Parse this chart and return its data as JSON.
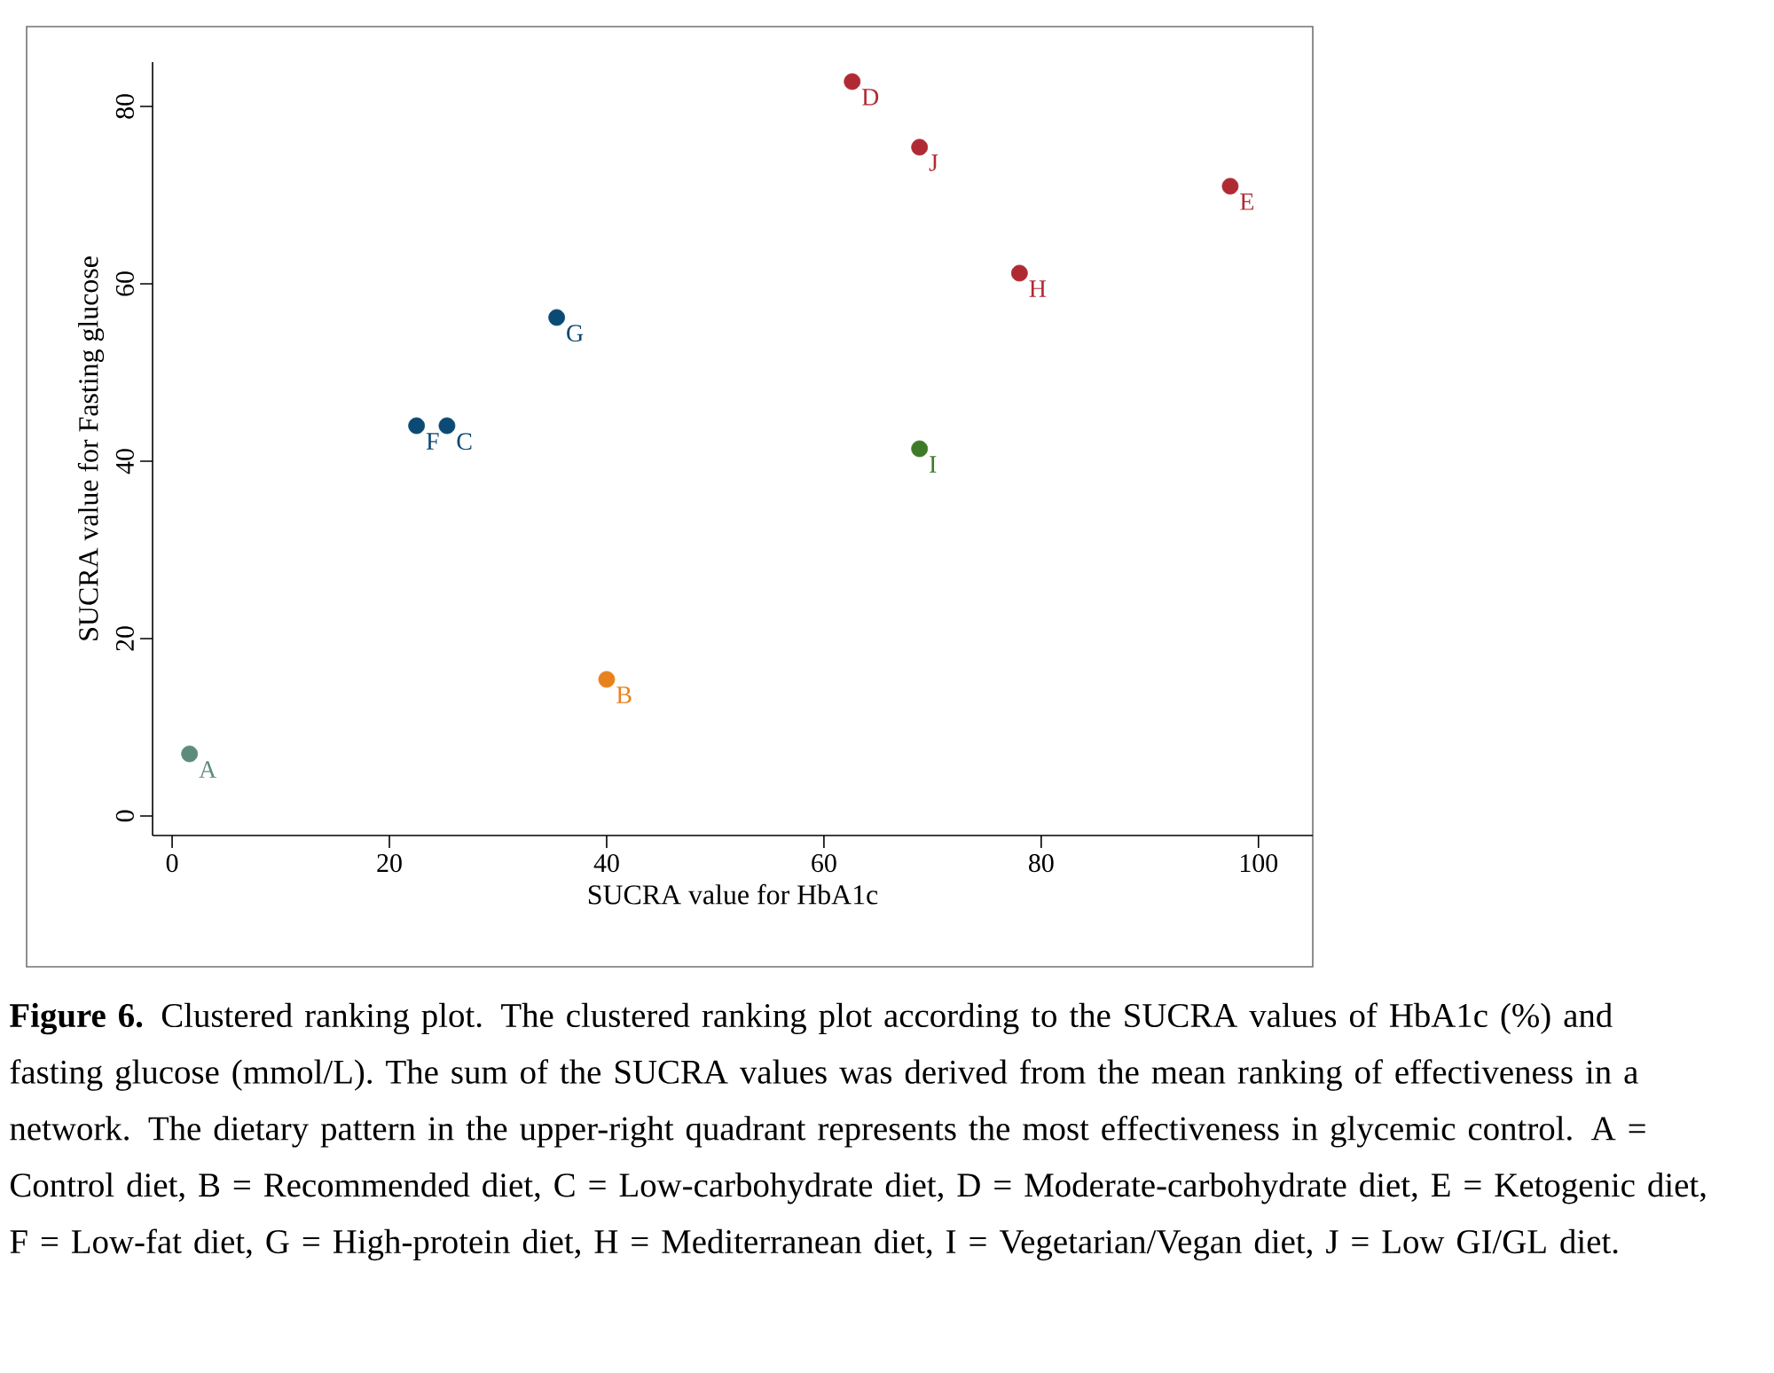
{
  "chart_data": {
    "type": "scatter",
    "xlabel": "SUCRA value for HbA1c",
    "ylabel": "SUCRA value for Fasting glucose",
    "xlim": [
      -1.8,
      105
    ],
    "ylim": [
      -2.2,
      85
    ],
    "xticks": [
      0,
      20,
      40,
      60,
      80,
      100
    ],
    "yticks": [
      0,
      20,
      40,
      60,
      80
    ],
    "marker": "circle",
    "grid": false,
    "legend": false,
    "series": [
      {
        "name": "A",
        "color": "#5e8c7c",
        "x": [
          1.6
        ],
        "values": [
          7
        ]
      },
      {
        "name": "B",
        "color": "#e8821e",
        "x": [
          40
        ],
        "values": [
          15.4
        ]
      },
      {
        "name": "C",
        "color": "#0b4a74",
        "x": [
          25.3
        ],
        "values": [
          44
        ]
      },
      {
        "name": "D",
        "color": "#b02a33",
        "x": [
          62.6
        ],
        "values": [
          82.8
        ]
      },
      {
        "name": "E",
        "color": "#b02a33",
        "x": [
          97.4
        ],
        "values": [
          71
        ]
      },
      {
        "name": "F",
        "color": "#0b4a74",
        "x": [
          22.5
        ],
        "values": [
          44
        ]
      },
      {
        "name": "G",
        "color": "#0b4a74",
        "x": [
          35.4
        ],
        "values": [
          56.2
        ]
      },
      {
        "name": "H",
        "color": "#b02a33",
        "x": [
          78
        ],
        "values": [
          61.2
        ]
      },
      {
        "name": "I",
        "color": "#3e7a28",
        "x": [
          68.8
        ],
        "values": [
          41.4
        ]
      },
      {
        "name": "J",
        "color": "#b02a33",
        "x": [
          68.8
        ],
        "values": [
          75.4
        ]
      }
    ],
    "annotations": [
      "**Figure 6.** Clustered ranking plot. The clustered ranking plot according to the SUCRA values of HbA1c (%) and fasting glucose (mmol/L). The sum of the SUCRA values was derived from the mean ranking of effectiveness in a network. The dietary pattern in the upper-right quadrant represents the most effectiveness in glycemic control. A = Control diet, B = Recommended diet, C = Low-carbohydrate diet, D = Moderate-carbohydrate diet, E = Ketogenic diet, F = Low-fat diet, G = High-protein diet, H = Mediterranean diet, I = Vegetarian/Vegan diet, J = Low GI/GL diet."
    ]
  }
}
